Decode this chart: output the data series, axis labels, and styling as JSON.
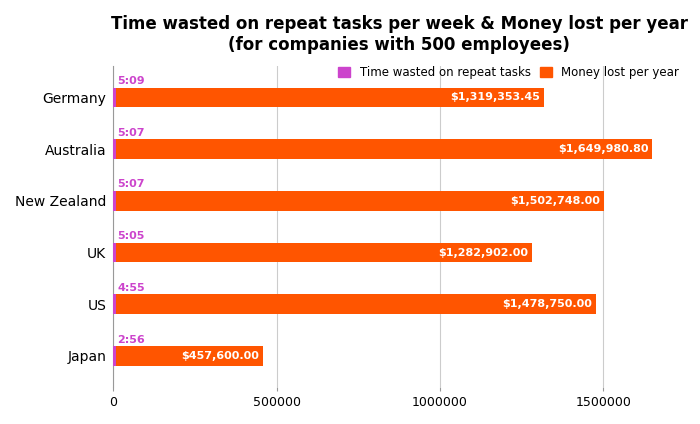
{
  "title": "Time wasted on repeat tasks per week & Money lost per year\n(for companies with 500 employees)",
  "categories": [
    "Germany",
    "Australia",
    "New Zealand",
    "UK",
    "US",
    "Japan"
  ],
  "time_labels": [
    "5:09",
    "5:07",
    "5:07",
    "5:05",
    "4:55",
    "2:56"
  ],
  "money_values": [
    1319353.45,
    1649980.8,
    1502748.0,
    1282902.0,
    1478750.0,
    457600.0
  ],
  "money_labels": [
    "$1,319,353.45",
    "$1,649,980.80",
    "$1,502,748.00",
    "$1,282,902.00",
    "$1,478,750.00",
    "$457,600.00"
  ],
  "time_color": "#CC44CC",
  "money_color": "#FF5500",
  "bar_height": 0.38,
  "xlim": [
    0,
    1750000
  ],
  "background_color": "#ffffff",
  "title_fontsize": 12,
  "legend_label_time": "Time wasted on repeat tasks",
  "legend_label_money": "Money lost per year"
}
